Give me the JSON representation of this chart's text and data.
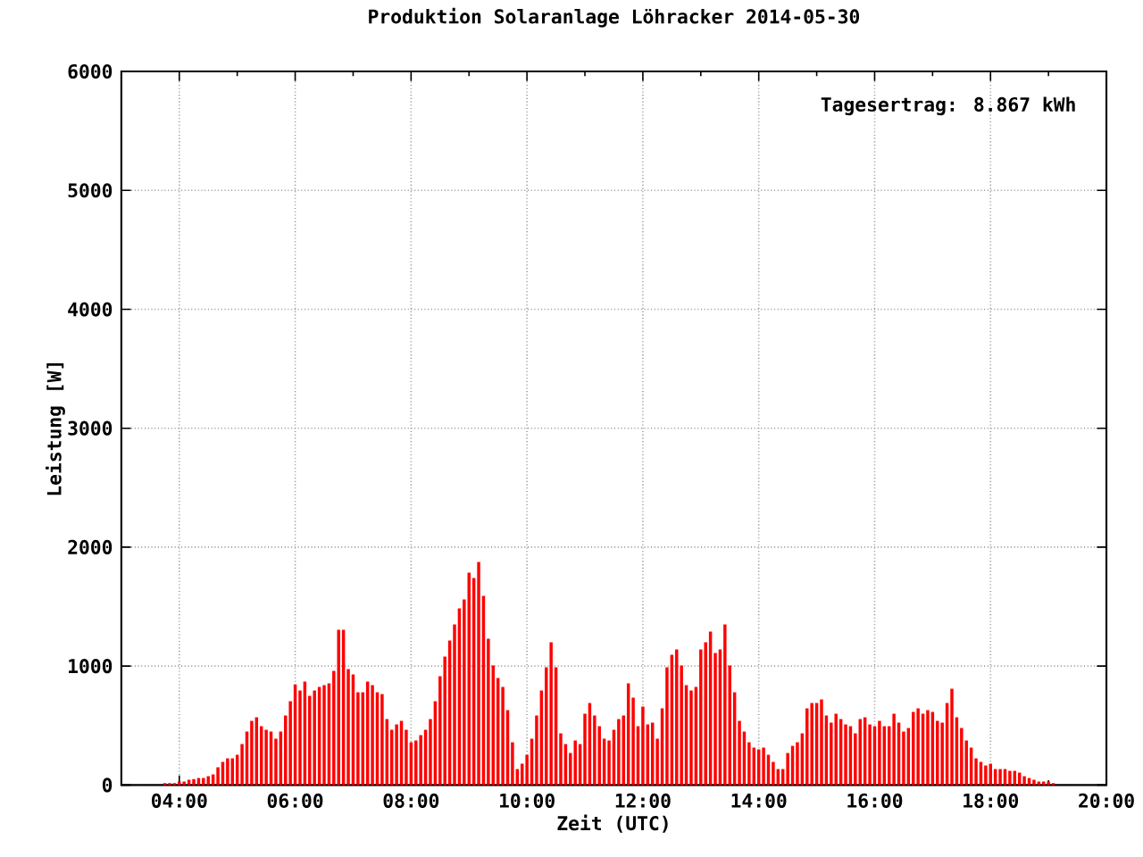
{
  "chart_data": {
    "type": "bar",
    "title": "Produktion Solaranlage Löhracker 2014-05-30",
    "xlabel": "Zeit (UTC)",
    "ylabel": "Leistung [W]",
    "annotations": [
      "Tagesertrag: 8.867 kWh"
    ],
    "color": "#ff0000",
    "grid": true,
    "xlim": [
      "2014-05-30T03:00",
      "2014-05-30T20:00"
    ],
    "xticks": [
      {
        "value": "2014-05-30T04:00",
        "label": "04:00"
      },
      {
        "value": "2014-05-30T06:00",
        "label": "06:00"
      },
      {
        "value": "2014-05-30T08:00",
        "label": "08:00"
      },
      {
        "value": "2014-05-30T10:00",
        "label": "10:00"
      },
      {
        "value": "2014-05-30T12:00",
        "label": "12:00"
      },
      {
        "value": "2014-05-30T14:00",
        "label": "14:00"
      },
      {
        "value": "2014-05-30T16:00",
        "label": "16:00"
      },
      {
        "value": "2014-05-30T18:00",
        "label": "18:00"
      },
      {
        "value": "2014-05-30T20:00",
        "label": "20:00"
      }
    ],
    "ylim": [
      0,
      6000
    ],
    "yticks": [
      0,
      1000,
      2000,
      3000,
      4000,
      5000,
      6000
    ],
    "x": [
      "2014-05-30T03:45",
      "2014-05-30T03:50",
      "2014-05-30T03:55",
      "2014-05-30T04:00",
      "2014-05-30T04:05",
      "2014-05-30T04:10",
      "2014-05-30T04:15",
      "2014-05-30T04:20",
      "2014-05-30T04:25",
      "2014-05-30T04:30",
      "2014-05-30T04:35",
      "2014-05-30T04:40",
      "2014-05-30T04:45",
      "2014-05-30T04:50",
      "2014-05-30T04:55",
      "2014-05-30T05:00",
      "2014-05-30T05:05",
      "2014-05-30T05:10",
      "2014-05-30T05:15",
      "2014-05-30T05:20",
      "2014-05-30T05:25",
      "2014-05-30T05:30",
      "2014-05-30T05:35",
      "2014-05-30T05:40",
      "2014-05-30T05:45",
      "2014-05-30T05:50",
      "2014-05-30T05:55",
      "2014-05-30T06:00",
      "2014-05-30T06:05",
      "2014-05-30T06:10",
      "2014-05-30T06:15",
      "2014-05-30T06:20",
      "2014-05-30T06:25",
      "2014-05-30T06:30",
      "2014-05-30T06:35",
      "2014-05-30T06:40",
      "2014-05-30T06:45",
      "2014-05-30T06:50",
      "2014-05-30T06:55",
      "2014-05-30T07:00",
      "2014-05-30T07:05",
      "2014-05-30T07:10",
      "2014-05-30T07:15",
      "2014-05-30T07:20",
      "2014-05-30T07:25",
      "2014-05-30T07:30",
      "2014-05-30T07:35",
      "2014-05-30T07:40",
      "2014-05-30T07:45",
      "2014-05-30T07:50",
      "2014-05-30T07:55",
      "2014-05-30T08:00",
      "2014-05-30T08:05",
      "2014-05-30T08:10",
      "2014-05-30T08:15",
      "2014-05-30T08:20",
      "2014-05-30T08:25",
      "2014-05-30T08:30",
      "2014-05-30T08:35",
      "2014-05-30T08:40",
      "2014-05-30T08:45",
      "2014-05-30T08:50",
      "2014-05-30T08:55",
      "2014-05-30T09:00",
      "2014-05-30T09:05",
      "2014-05-30T09:10",
      "2014-05-30T09:15",
      "2014-05-30T09:20",
      "2014-05-30T09:25",
      "2014-05-30T09:30",
      "2014-05-30T09:35",
      "2014-05-30T09:40",
      "2014-05-30T09:45",
      "2014-05-30T09:50",
      "2014-05-30T09:55",
      "2014-05-30T10:00",
      "2014-05-30T10:05",
      "2014-05-30T10:10",
      "2014-05-30T10:15",
      "2014-05-30T10:20",
      "2014-05-30T10:25",
      "2014-05-30T10:30",
      "2014-05-30T10:35",
      "2014-05-30T10:40",
      "2014-05-30T10:45",
      "2014-05-30T10:50",
      "2014-05-30T10:55",
      "2014-05-30T11:00",
      "2014-05-30T11:05",
      "2014-05-30T11:10",
      "2014-05-30T11:15",
      "2014-05-30T11:20",
      "2014-05-30T11:25",
      "2014-05-30T11:30",
      "2014-05-30T11:35",
      "2014-05-30T11:40",
      "2014-05-30T11:45",
      "2014-05-30T11:50",
      "2014-05-30T11:55",
      "2014-05-30T12:00",
      "2014-05-30T12:05",
      "2014-05-30T12:10",
      "2014-05-30T12:15",
      "2014-05-30T12:20",
      "2014-05-30T12:25",
      "2014-05-30T12:30",
      "2014-05-30T12:35",
      "2014-05-30T12:40",
      "2014-05-30T12:45",
      "2014-05-30T12:50",
      "2014-05-30T12:55",
      "2014-05-30T13:00",
      "2014-05-30T13:05",
      "2014-05-30T13:10",
      "2014-05-30T13:15",
      "2014-05-30T13:20",
      "2014-05-30T13:25",
      "2014-05-30T13:30",
      "2014-05-30T13:35",
      "2014-05-30T13:40",
      "2014-05-30T13:45",
      "2014-05-30T13:50",
      "2014-05-30T13:55",
      "2014-05-30T14:00",
      "2014-05-30T14:05",
      "2014-05-30T14:10",
      "2014-05-30T14:15",
      "2014-05-30T14:20",
      "2014-05-30T14:25",
      "2014-05-30T14:30",
      "2014-05-30T14:35",
      "2014-05-30T14:40",
      "2014-05-30T14:45",
      "2014-05-30T14:50",
      "2014-05-30T14:55",
      "2014-05-30T15:00",
      "2014-05-30T15:05",
      "2014-05-30T15:10",
      "2014-05-30T15:15",
      "2014-05-30T15:20",
      "2014-05-30T15:25",
      "2014-05-30T15:30",
      "2014-05-30T15:35",
      "2014-05-30T15:40",
      "2014-05-30T15:45",
      "2014-05-30T15:50",
      "2014-05-30T15:55",
      "2014-05-30T16:00",
      "2014-05-30T16:05",
      "2014-05-30T16:10",
      "2014-05-30T16:15",
      "2014-05-30T16:20",
      "2014-05-30T16:25",
      "2014-05-30T16:30",
      "2014-05-30T16:35",
      "2014-05-30T16:40",
      "2014-05-30T16:45",
      "2014-05-30T16:50",
      "2014-05-30T16:55",
      "2014-05-30T17:00",
      "2014-05-30T17:05",
      "2014-05-30T17:10",
      "2014-05-30T17:15",
      "2014-05-30T17:20",
      "2014-05-30T17:25",
      "2014-05-30T17:30",
      "2014-05-30T17:35",
      "2014-05-30T17:40",
      "2014-05-30T17:45",
      "2014-05-30T17:50",
      "2014-05-30T17:55",
      "2014-05-30T18:00",
      "2014-05-30T18:05",
      "2014-05-30T18:10",
      "2014-05-30T18:15",
      "2014-05-30T18:20",
      "2014-05-30T18:25",
      "2014-05-30T18:30",
      "2014-05-30T18:35",
      "2014-05-30T18:40",
      "2014-05-30T18:45",
      "2014-05-30T18:50",
      "2014-05-30T18:55",
      "2014-05-30T19:00",
      "2014-05-30T19:05"
    ],
    "values": [
      15,
      15,
      15,
      30,
      30,
      45,
      50,
      60,
      60,
      75,
      90,
      150,
      195,
      225,
      225,
      255,
      345,
      450,
      540,
      570,
      495,
      465,
      450,
      390,
      450,
      585,
      705,
      845,
      795,
      870,
      750,
      795,
      825,
      840,
      855,
      960,
      1305,
      1305,
      975,
      930,
      780,
      780,
      870,
      840,
      780,
      765,
      555,
      465,
      510,
      540,
      465,
      360,
      375,
      420,
      465,
      555,
      705,
      915,
      1080,
      1215,
      1350,
      1485,
      1560,
      1785,
      1740,
      1875,
      1590,
      1230,
      1005,
      900,
      825,
      630,
      360,
      135,
      180,
      255,
      390,
      585,
      795,
      990,
      1200,
      990,
      435,
      345,
      270,
      375,
      345,
      600,
      690,
      585,
      495,
      390,
      375,
      465,
      555,
      585,
      855,
      735,
      495,
      660,
      510,
      525,
      390,
      645,
      990,
      1095,
      1140,
      1005,
      840,
      795,
      825,
      1140,
      1200,
      1290,
      1110,
      1140,
      1350,
      1005,
      780,
      540,
      450,
      360,
      315,
      300,
      315,
      255,
      195,
      135,
      135,
      270,
      330,
      360,
      435,
      645,
      690,
      690,
      720,
      585,
      525,
      600,
      555,
      510,
      495,
      435,
      555,
      570,
      510,
      495,
      540,
      495,
      495,
      600,
      525,
      450,
      480,
      615,
      645,
      600,
      630,
      615,
      540,
      525,
      690,
      810,
      570,
      480,
      375,
      315,
      225,
      195,
      165,
      180,
      135,
      135,
      135,
      120,
      120,
      105,
      75,
      60,
      45,
      30,
      30,
      30,
      15
    ]
  }
}
